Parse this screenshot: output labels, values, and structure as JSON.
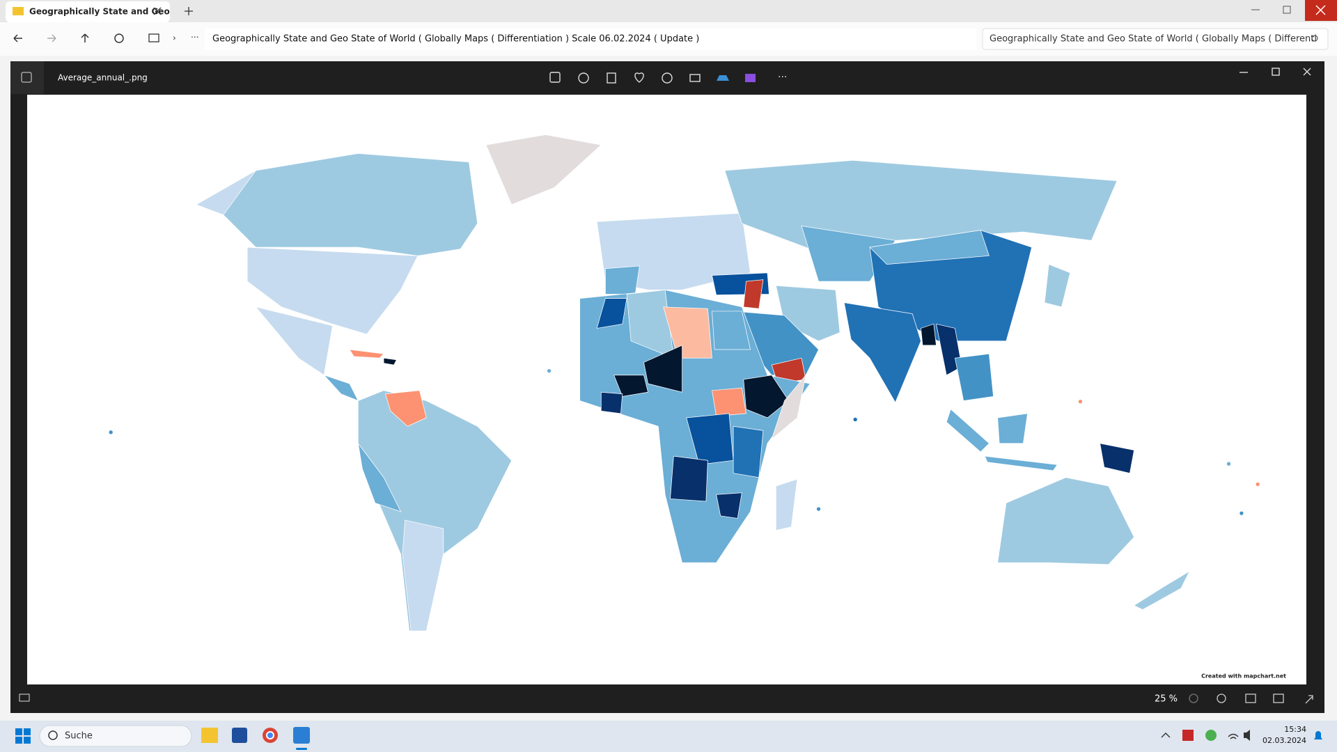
{
  "browser": {
    "tab_title": "Geographically State and Geo",
    "address": "Geographically State and Geo State of World ( Globally Maps ( Differentiation ) Scale 06.02.2024 ( Update )",
    "search": "Geographically State and Geo State of World ( Globally Maps ( Differenti"
  },
  "viewer": {
    "file_name": "Average_annual_.png",
    "credit": "Created with mapchart.net",
    "zoom": "25 %"
  },
  "taskbar": {
    "search": "Suche",
    "time": "15:34",
    "date": "02.03.2024"
  }
}
